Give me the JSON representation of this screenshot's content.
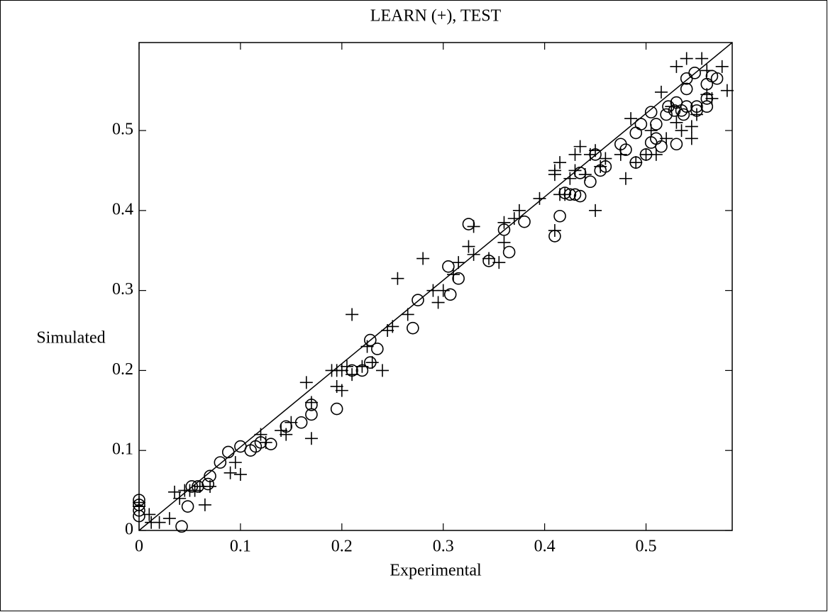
{
  "chart_data": {
    "type": "scatter",
    "title": "LEARN (+),    TEST",
    "x_label": "Experimental",
    "y_label": "Simulated",
    "xlim": [
      0,
      0.585
    ],
    "ylim": [
      0,
      0.61
    ],
    "xticks": [
      0,
      0.1,
      0.2,
      0.3,
      0.4,
      0.5
    ],
    "yticks": [
      0,
      0.1,
      0.2,
      0.3,
      0.4,
      0.5
    ],
    "diagonal": true,
    "series": [
      {
        "marker": "+",
        "color": "#000000",
        "x": [
          0,
          0,
          0.01,
          0.012,
          0.02,
          0.03,
          0.035,
          0.04,
          0.045,
          0.05,
          0.055,
          0.06,
          0.065,
          0.07,
          0.09,
          0.095,
          0.1,
          0.12,
          0.125,
          0.14,
          0.145,
          0.15,
          0.165,
          0.17,
          0.17,
          0.19,
          0.195,
          0.195,
          0.2,
          0.2,
          0.205,
          0.21,
          0.21,
          0.22,
          0.225,
          0.23,
          0.24,
          0.245,
          0.25,
          0.255,
          0.265,
          0.28,
          0.29,
          0.295,
          0.3,
          0.31,
          0.315,
          0.325,
          0.33,
          0.33,
          0.345,
          0.355,
          0.36,
          0.36,
          0.37,
          0.375,
          0.395,
          0.41,
          0.41,
          0.41,
          0.415,
          0.415,
          0.42,
          0.425,
          0.43,
          0.43,
          0.435,
          0.44,
          0.445,
          0.45,
          0.45,
          0.455,
          0.46,
          0.475,
          0.48,
          0.485,
          0.49,
          0.5,
          0.505,
          0.51,
          0.515,
          0.52,
          0.525,
          0.53,
          0.535,
          0.54,
          0.545,
          0.545,
          0.55,
          0.555,
          0.56,
          0.565,
          0.575,
          0.58,
          0.56,
          0.53
        ],
        "values": [
          0.03,
          0.035,
          0.02,
          0.01,
          0.01,
          0.015,
          0.048,
          0.04,
          0.05,
          0.05,
          0.05,
          0.055,
          0.032,
          0.055,
          0.072,
          0.085,
          0.07,
          0.12,
          0.11,
          0.125,
          0.12,
          0.135,
          0.185,
          0.115,
          0.16,
          0.2,
          0.18,
          0.2,
          0.175,
          0.2,
          0.205,
          0.27,
          0.195,
          0.205,
          0.23,
          0.21,
          0.2,
          0.25,
          0.255,
          0.315,
          0.27,
          0.34,
          0.3,
          0.285,
          0.3,
          0.32,
          0.335,
          0.355,
          0.345,
          0.38,
          0.34,
          0.335,
          0.385,
          0.36,
          0.39,
          0.4,
          0.415,
          0.375,
          0.445,
          0.45,
          0.42,
          0.46,
          0.42,
          0.44,
          0.47,
          0.45,
          0.48,
          0.445,
          0.47,
          0.4,
          0.475,
          0.455,
          0.465,
          0.47,
          0.44,
          0.515,
          0.46,
          0.47,
          0.5,
          0.47,
          0.548,
          0.49,
          0.53,
          0.58,
          0.5,
          0.59,
          0.49,
          0.505,
          0.52,
          0.59,
          0.545,
          0.54,
          0.58,
          0.55,
          0.575,
          0.51
        ]
      },
      {
        "marker": "o",
        "color": "#000000",
        "x": [
          0,
          0,
          0,
          0,
          0.042,
          0.048,
          0.052,
          0.058,
          0.068,
          0.07,
          0.08,
          0.088,
          0.1,
          0.11,
          0.115,
          0.12,
          0.13,
          0.145,
          0.16,
          0.17,
          0.17,
          0.195,
          0.21,
          0.22,
          0.228,
          0.228,
          0.235,
          0.27,
          0.275,
          0.305,
          0.307,
          0.315,
          0.325,
          0.345,
          0.36,
          0.365,
          0.38,
          0.41,
          0.415,
          0.42,
          0.425,
          0.43,
          0.435,
          0.435,
          0.445,
          0.45,
          0.455,
          0.46,
          0.475,
          0.48,
          0.49,
          0.49,
          0.495,
          0.5,
          0.505,
          0.505,
          0.51,
          0.51,
          0.515,
          0.52,
          0.522,
          0.528,
          0.53,
          0.53,
          0.535,
          0.537,
          0.54,
          0.54,
          0.54,
          0.548,
          0.55,
          0.55,
          0.56,
          0.56,
          0.565,
          0.57,
          0.56
        ],
        "values": [
          0.038,
          0.032,
          0.025,
          0.018,
          0.005,
          0.03,
          0.055,
          0.055,
          0.058,
          0.068,
          0.085,
          0.098,
          0.105,
          0.1,
          0.105,
          0.11,
          0.108,
          0.13,
          0.135,
          0.145,
          0.157,
          0.152,
          0.2,
          0.2,
          0.21,
          0.238,
          0.227,
          0.253,
          0.288,
          0.33,
          0.295,
          0.315,
          0.383,
          0.337,
          0.376,
          0.348,
          0.386,
          0.368,
          0.393,
          0.422,
          0.42,
          0.42,
          0.418,
          0.447,
          0.436,
          0.47,
          0.45,
          0.455,
          0.483,
          0.476,
          0.46,
          0.497,
          0.508,
          0.47,
          0.485,
          0.523,
          0.508,
          0.49,
          0.48,
          0.52,
          0.53,
          0.525,
          0.483,
          0.535,
          0.525,
          0.52,
          0.53,
          0.552,
          0.565,
          0.572,
          0.525,
          0.53,
          0.53,
          0.558,
          0.568,
          0.565,
          0.54
        ]
      }
    ]
  }
}
